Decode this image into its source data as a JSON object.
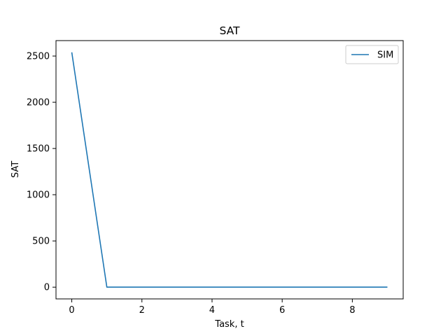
{
  "chart_data": {
    "type": "line",
    "title": "SAT",
    "xlabel": "Task, t",
    "ylabel": "SAT",
    "xlim": [
      -0.45,
      9.45
    ],
    "ylim": [
      -127,
      2667
    ],
    "xticks": [
      0,
      2,
      4,
      6,
      8
    ],
    "yticks": [
      0,
      500,
      1000,
      1500,
      2000,
      2500
    ],
    "grid": false,
    "legend_position": "top-right",
    "series": [
      {
        "name": "SIM",
        "color": "#1f77b4",
        "x": [
          0,
          1,
          2,
          3,
          4,
          5,
          6,
          7,
          8,
          9
        ],
        "y": [
          2540,
          0,
          0,
          0,
          0,
          0,
          0,
          0,
          0,
          0
        ]
      }
    ]
  }
}
